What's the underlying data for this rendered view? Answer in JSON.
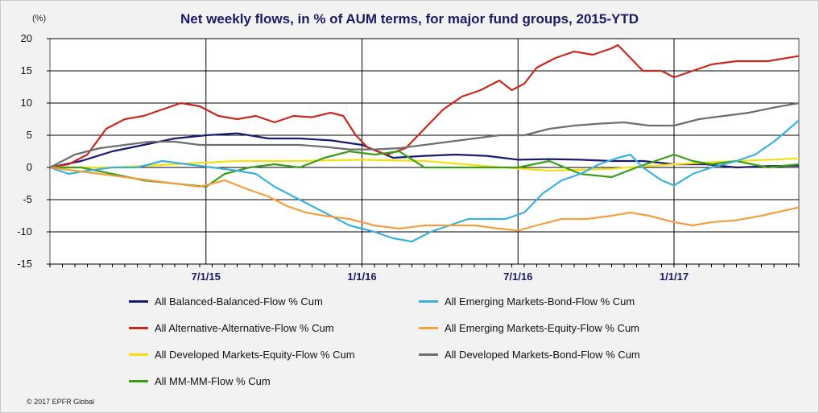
{
  "chart_data": {
    "type": "line",
    "title": "Net weekly flows, in % of AUM terms, for major fund groups, 2015-YTD",
    "unit_label": "(%)",
    "credit": "© 2017 EPFR Global",
    "ylim": [
      -15,
      20
    ],
    "yticks": [
      20,
      15,
      10,
      5,
      0,
      -5,
      -10,
      -15
    ],
    "x_range": [
      0,
      120
    ],
    "xticks": [
      {
        "label": "7/1/15",
        "x": 25
      },
      {
        "label": "1/1/16",
        "x": 50
      },
      {
        "label": "7/1/16",
        "x": 75
      },
      {
        "label": "1/1/17",
        "x": 100
      }
    ],
    "grid": true,
    "series": [
      {
        "name": "All Balanced-Balanced-Flow % Cum",
        "color": "#1a1a6e",
        "points": [
          [
            0,
            0
          ],
          [
            5,
            1
          ],
          [
            10,
            2.5
          ],
          [
            15,
            3.5
          ],
          [
            20,
            4.5
          ],
          [
            25,
            5
          ],
          [
            30,
            5.3
          ],
          [
            35,
            4.5
          ],
          [
            40,
            4.5
          ],
          [
            45,
            4.2
          ],
          [
            50,
            3.5
          ],
          [
            55,
            1.5
          ],
          [
            60,
            1.8
          ],
          [
            65,
            2
          ],
          [
            70,
            1.8
          ],
          [
            75,
            1.2
          ],
          [
            80,
            1.3
          ],
          [
            85,
            1.2
          ],
          [
            90,
            1
          ],
          [
            95,
            1
          ],
          [
            100,
            0.5
          ],
          [
            105,
            0.5
          ],
          [
            110,
            0
          ],
          [
            115,
            0.2
          ],
          [
            120,
            0.3
          ]
        ]
      },
      {
        "name": "All Alternative-Alternative-Flow % Cum",
        "color": "#c8281e",
        "points": [
          [
            0,
            0
          ],
          [
            3,
            0.5
          ],
          [
            6,
            2
          ],
          [
            9,
            6
          ],
          [
            12,
            7.5
          ],
          [
            15,
            8
          ],
          [
            18,
            9
          ],
          [
            21,
            10
          ],
          [
            24,
            9.5
          ],
          [
            27,
            8
          ],
          [
            30,
            7.5
          ],
          [
            33,
            8
          ],
          [
            36,
            7
          ],
          [
            39,
            8
          ],
          [
            42,
            7.8
          ],
          [
            45,
            8.5
          ],
          [
            47,
            8
          ],
          [
            49,
            5
          ],
          [
            51,
            3
          ],
          [
            54,
            2
          ],
          [
            57,
            3
          ],
          [
            60,
            6
          ],
          [
            63,
            9
          ],
          [
            66,
            11
          ],
          [
            69,
            12
          ],
          [
            72,
            13.5
          ],
          [
            74,
            12
          ],
          [
            76,
            13
          ],
          [
            78,
            15.5
          ],
          [
            81,
            17
          ],
          [
            84,
            18
          ],
          [
            87,
            17.5
          ],
          [
            90,
            18.5
          ],
          [
            91,
            19
          ],
          [
            93,
            17
          ],
          [
            95,
            15
          ],
          [
            98,
            15
          ],
          [
            100,
            14
          ],
          [
            103,
            15
          ],
          [
            106,
            16
          ],
          [
            110,
            16.5
          ],
          [
            115,
            16.5
          ],
          [
            120,
            17.3
          ]
        ]
      },
      {
        "name": "All Developed Markets-Equity-Flow % Cum",
        "color": "#f5e012",
        "points": [
          [
            0,
            0
          ],
          [
            10,
            0
          ],
          [
            20,
            0.5
          ],
          [
            30,
            1
          ],
          [
            40,
            1
          ],
          [
            50,
            1.2
          ],
          [
            60,
            1
          ],
          [
            70,
            0.2
          ],
          [
            80,
            -0.5
          ],
          [
            90,
            -0.2
          ],
          [
            100,
            0.5
          ],
          [
            110,
            1
          ],
          [
            120,
            1.4
          ]
        ]
      },
      {
        "name": "All MM-MM-Flow % Cum",
        "color": "#3a9e1a",
        "points": [
          [
            0,
            0
          ],
          [
            5,
            0
          ],
          [
            10,
            -1
          ],
          [
            15,
            -2
          ],
          [
            20,
            -2.5
          ],
          [
            25,
            -3
          ],
          [
            28,
            -1
          ],
          [
            32,
            0
          ],
          [
            36,
            0.5
          ],
          [
            40,
            0
          ],
          [
            44,
            1.5
          ],
          [
            48,
            2.5
          ],
          [
            52,
            2
          ],
          [
            56,
            2.5
          ],
          [
            60,
            0
          ],
          [
            65,
            0
          ],
          [
            70,
            0
          ],
          [
            75,
            0
          ],
          [
            80,
            1
          ],
          [
            85,
            -1
          ],
          [
            90,
            -1.5
          ],
          [
            94,
            0
          ],
          [
            97,
            1
          ],
          [
            100,
            2
          ],
          [
            103,
            1
          ],
          [
            106,
            0.5
          ],
          [
            110,
            1
          ],
          [
            115,
            0
          ],
          [
            120,
            0.5
          ]
        ]
      },
      {
        "name": "All Emerging Markets-Bond-Flow % Cum",
        "color": "#3ab0e0",
        "points": [
          [
            0,
            0
          ],
          [
            3,
            -1
          ],
          [
            6,
            -0.5
          ],
          [
            10,
            0
          ],
          [
            14,
            0
          ],
          [
            18,
            1
          ],
          [
            22,
            0.5
          ],
          [
            26,
            0
          ],
          [
            30,
            -0.5
          ],
          [
            33,
            -1
          ],
          [
            36,
            -3
          ],
          [
            40,
            -5
          ],
          [
            44,
            -7
          ],
          [
            48,
            -9
          ],
          [
            52,
            -10
          ],
          [
            55,
            -11
          ],
          [
            58,
            -11.5
          ],
          [
            61,
            -10
          ],
          [
            64,
            -9
          ],
          [
            67,
            -8
          ],
          [
            70,
            -8
          ],
          [
            73,
            -8
          ],
          [
            76,
            -7
          ],
          [
            79,
            -4
          ],
          [
            82,
            -2
          ],
          [
            85,
            -1
          ],
          [
            88,
            0.5
          ],
          [
            91,
            1.5
          ],
          [
            93,
            2
          ],
          [
            95,
            0
          ],
          [
            98,
            -2
          ],
          [
            100,
            -2.8
          ],
          [
            103,
            -1
          ],
          [
            106,
            0
          ],
          [
            110,
            1
          ],
          [
            113,
            2
          ],
          [
            116,
            4
          ],
          [
            120,
            7.3
          ]
        ]
      },
      {
        "name": "All Emerging Markets-Equity-Flow % Cum",
        "color": "#f0a040",
        "points": [
          [
            0,
            0
          ],
          [
            4,
            -0.5
          ],
          [
            8,
            -1
          ],
          [
            12,
            -1.5
          ],
          [
            16,
            -2
          ],
          [
            20,
            -2.5
          ],
          [
            24,
            -3
          ],
          [
            28,
            -2
          ],
          [
            32,
            -3.5
          ],
          [
            35,
            -4.5
          ],
          [
            38,
            -6
          ],
          [
            41,
            -7
          ],
          [
            44,
            -7.5
          ],
          [
            48,
            -8
          ],
          [
            52,
            -9
          ],
          [
            56,
            -9.5
          ],
          [
            60,
            -9
          ],
          [
            64,
            -9
          ],
          [
            68,
            -9
          ],
          [
            72,
            -9.5
          ],
          [
            75,
            -9.8
          ],
          [
            78,
            -9
          ],
          [
            82,
            -8
          ],
          [
            86,
            -8
          ],
          [
            90,
            -7.5
          ],
          [
            93,
            -7
          ],
          [
            96,
            -7.5
          ],
          [
            100,
            -8.5
          ],
          [
            103,
            -9
          ],
          [
            106,
            -8.5
          ],
          [
            110,
            -8.2
          ],
          [
            114,
            -7.5
          ],
          [
            120,
            -6.2
          ]
        ]
      },
      {
        "name": "All Developed Markets-Bond-Flow % Cum",
        "color": "#6e6e6e",
        "points": [
          [
            0,
            0
          ],
          [
            4,
            2
          ],
          [
            8,
            3
          ],
          [
            12,
            3.5
          ],
          [
            16,
            4
          ],
          [
            20,
            4
          ],
          [
            24,
            3.5
          ],
          [
            28,
            3.5
          ],
          [
            32,
            3.5
          ],
          [
            36,
            3.5
          ],
          [
            40,
            3.5
          ],
          [
            44,
            3.2
          ],
          [
            48,
            2.8
          ],
          [
            52,
            2.8
          ],
          [
            56,
            3
          ],
          [
            60,
            3.5
          ],
          [
            64,
            4
          ],
          [
            68,
            4.5
          ],
          [
            72,
            5
          ],
          [
            76,
            5
          ],
          [
            80,
            6
          ],
          [
            84,
            6.5
          ],
          [
            88,
            6.8
          ],
          [
            92,
            7
          ],
          [
            96,
            6.5
          ],
          [
            100,
            6.5
          ],
          [
            104,
            7.5
          ],
          [
            108,
            8
          ],
          [
            112,
            8.5
          ],
          [
            116,
            9.3
          ],
          [
            120,
            10
          ]
        ]
      }
    ]
  }
}
